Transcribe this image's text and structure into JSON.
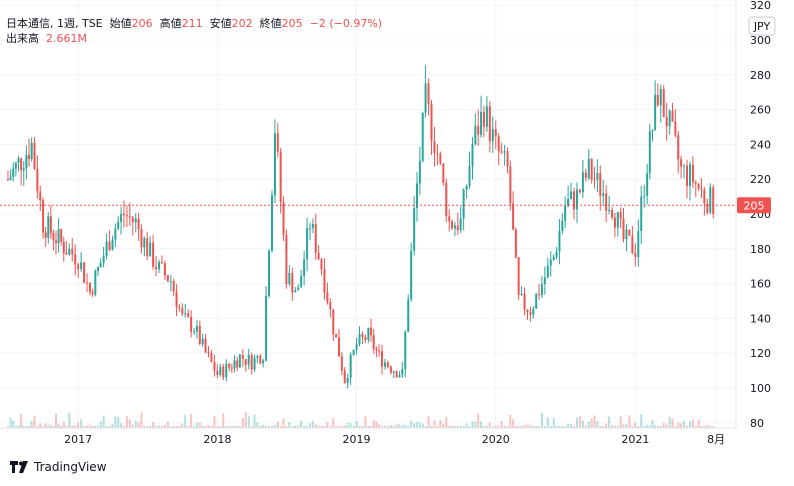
{
  "header": {
    "symbol": "日本通信, 1週, TSE",
    "open_label": "始値",
    "open_value": "206",
    "high_label": "高値",
    "high_value": "211",
    "low_label": "安値",
    "low_value": "202",
    "close_label": "終値",
    "close_value": "205",
    "change": "−2 (−0.97%)",
    "volume_label": "出来高",
    "volume_value": "2.661M"
  },
  "currency": "JPY",
  "current_price_label": "205",
  "brand": "TradingView",
  "colors": {
    "up": "#26a69a",
    "down": "#ef5350",
    "grid": "#f0f3fa",
    "price_line": "#ef5350"
  },
  "chart_data": {
    "type": "candlestick",
    "y_ticks": [
      "80",
      "100",
      "120",
      "140",
      "160",
      "180",
      "200",
      "220",
      "240",
      "260",
      "280",
      "300",
      "320"
    ],
    "x_ticks": [
      "2017",
      "2018",
      "2019",
      "2020",
      "2021",
      "8月"
    ],
    "ylim": [
      77,
      323
    ],
    "current_price": 205,
    "close_path": [
      {
        "t": "2016-07",
        "v": 220
      },
      {
        "t": "2016-09",
        "v": 240
      },
      {
        "t": "2016-10",
        "v": 195
      },
      {
        "t": "2016-12",
        "v": 180
      },
      {
        "t": "2017-01",
        "v": 175
      },
      {
        "t": "2017-02",
        "v": 155
      },
      {
        "t": "2017-03",
        "v": 172
      },
      {
        "t": "2017-04",
        "v": 190
      },
      {
        "t": "2017-05",
        "v": 200
      },
      {
        "t": "2017-06",
        "v": 195
      },
      {
        "t": "2017-07",
        "v": 180
      },
      {
        "t": "2017-08",
        "v": 168
      },
      {
        "t": "2017-09",
        "v": 162
      },
      {
        "t": "2017-10",
        "v": 140
      },
      {
        "t": "2017-11",
        "v": 135
      },
      {
        "t": "2017-12",
        "v": 120
      },
      {
        "t": "2018-01",
        "v": 108
      },
      {
        "t": "2018-02",
        "v": 112
      },
      {
        "t": "2018-03",
        "v": 118
      },
      {
        "t": "2018-04",
        "v": 115
      },
      {
        "t": "2018-05",
        "v": 120
      },
      {
        "t": "2018-06",
        "v": 250
      },
      {
        "t": "2018-07",
        "v": 165
      },
      {
        "t": "2018-08",
        "v": 155
      },
      {
        "t": "2018-09",
        "v": 195
      },
      {
        "t": "2018-10",
        "v": 170
      },
      {
        "t": "2018-11",
        "v": 135
      },
      {
        "t": "2018-12",
        "v": 105
      },
      {
        "t": "2019-01",
        "v": 125
      },
      {
        "t": "2019-02",
        "v": 130
      },
      {
        "t": "2019-03",
        "v": 118
      },
      {
        "t": "2019-04",
        "v": 112
      },
      {
        "t": "2019-05",
        "v": 108
      },
      {
        "t": "2019-06",
        "v": 200
      },
      {
        "t": "2019-07",
        "v": 265
      },
      {
        "t": "2019-08",
        "v": 235
      },
      {
        "t": "2019-09",
        "v": 195
      },
      {
        "t": "2019-10",
        "v": 195
      },
      {
        "t": "2019-11",
        "v": 240
      },
      {
        "t": "2019-12",
        "v": 260
      },
      {
        "t": "2020-01",
        "v": 238
      },
      {
        "t": "2020-02",
        "v": 225
      },
      {
        "t": "2020-03",
        "v": 150
      },
      {
        "t": "2020-04",
        "v": 145
      },
      {
        "t": "2020-05",
        "v": 160
      },
      {
        "t": "2020-06",
        "v": 175
      },
      {
        "t": "2020-07",
        "v": 205
      },
      {
        "t": "2020-08",
        "v": 210
      },
      {
        "t": "2020-09",
        "v": 225
      },
      {
        "t": "2020-10",
        "v": 215
      },
      {
        "t": "2020-11",
        "v": 205
      },
      {
        "t": "2020-12",
        "v": 185
      },
      {
        "t": "2021-01",
        "v": 180
      },
      {
        "t": "2021-02",
        "v": 230
      },
      {
        "t": "2021-03",
        "v": 270
      },
      {
        "t": "2021-04",
        "v": 250
      },
      {
        "t": "2021-05",
        "v": 225
      },
      {
        "t": "2021-06",
        "v": 220
      },
      {
        "t": "2021-07",
        "v": 210
      },
      {
        "t": "2021-08",
        "v": 205
      }
    ]
  }
}
